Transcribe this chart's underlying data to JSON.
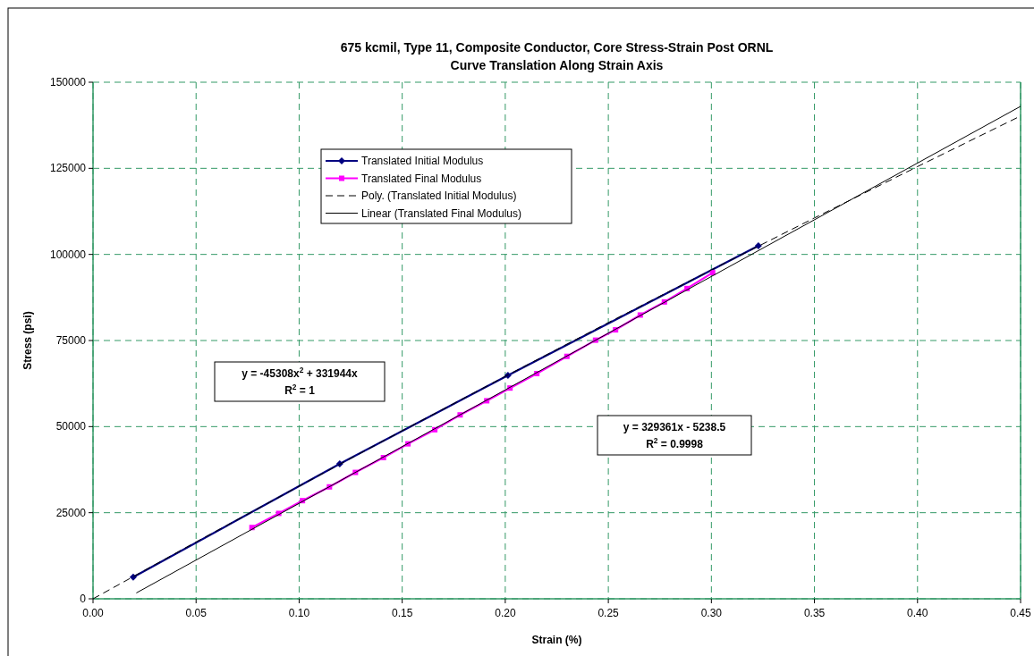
{
  "chart_data": {
    "type": "line",
    "title": "675 kcmil, Type 11, Composite Conductor, Core Stress-Strain Post ORNL",
    "subtitle": "Curve Translation Along Strain Axis",
    "xlabel": "Strain (%)",
    "ylabel": "Stress (psi)",
    "xlim": [
      0,
      0.45
    ],
    "ylim": [
      0,
      150000
    ],
    "xticks": [
      {
        "value": 0,
        "label": "0.00"
      },
      {
        "value": 0.05,
        "label": "0.05"
      },
      {
        "value": 0.1,
        "label": "0.10"
      },
      {
        "value": 0.15,
        "label": "0.15"
      },
      {
        "value": 0.2,
        "label": "0.20"
      },
      {
        "value": 0.25,
        "label": "0.25"
      },
      {
        "value": 0.3,
        "label": "0.30"
      },
      {
        "value": 0.35,
        "label": "0.35"
      },
      {
        "value": 0.4,
        "label": "0.40"
      },
      {
        "value": 0.45,
        "label": "0.45"
      }
    ],
    "yticks": [
      0,
      25000,
      50000,
      75000,
      100000,
      125000,
      150000
    ],
    "grid": true,
    "legend": "top left",
    "series": [
      {
        "name": "Translated Initial Modulus",
        "color": "#000080",
        "marker": "diamond",
        "line_style": "solid",
        "x": [
          0.0195,
          0.1197,
          0.2013,
          0.3228
        ],
        "values": [
          6300,
          39200,
          64900,
          102500
        ]
      },
      {
        "name": "Translated Final Modulus",
        "color": "#ff00ff",
        "marker": "square",
        "line_style": "solid",
        "x": [
          0.0771,
          0.0901,
          0.1016,
          0.1147,
          0.1273,
          0.1409,
          0.1528,
          0.1658,
          0.1781,
          0.191,
          0.2023,
          0.2153,
          0.2299,
          0.2438,
          0.2535,
          0.2655,
          0.2772,
          0.2882,
          0.3006
        ],
        "values": [
          20700,
          24800,
          28500,
          32500,
          36700,
          41000,
          45000,
          49100,
          53400,
          57500,
          61200,
          65400,
          70400,
          75100,
          78100,
          82400,
          86200,
          90100,
          94700
        ]
      },
      {
        "name": "Poly. (Translated Initial Modulus)",
        "color": "#000000",
        "marker": "none",
        "line_style": "dashed",
        "x": [
          0,
          0.05,
          0.1,
          0.15,
          0.2,
          0.25,
          0.3,
          0.35,
          0.4,
          0.45
        ],
        "values": [
          0,
          16500,
          32700,
          48800,
          64600,
          80200,
          95500,
          110600,
          125500,
          140200
        ]
      },
      {
        "name": "Linear (Translated Final Modulus)",
        "color": "#000000",
        "marker": "none",
        "line_style": "solid",
        "x": [
          0.021,
          0.45
        ],
        "values": [
          1700,
          143000
        ]
      }
    ],
    "annotations": [
      "y = -45308x$^{2}$ + 331944x",
      "R$^{2}$ = 1",
      "y = 329361x - 5238.5",
      "R$^{2}$ = 0.9998"
    ]
  }
}
